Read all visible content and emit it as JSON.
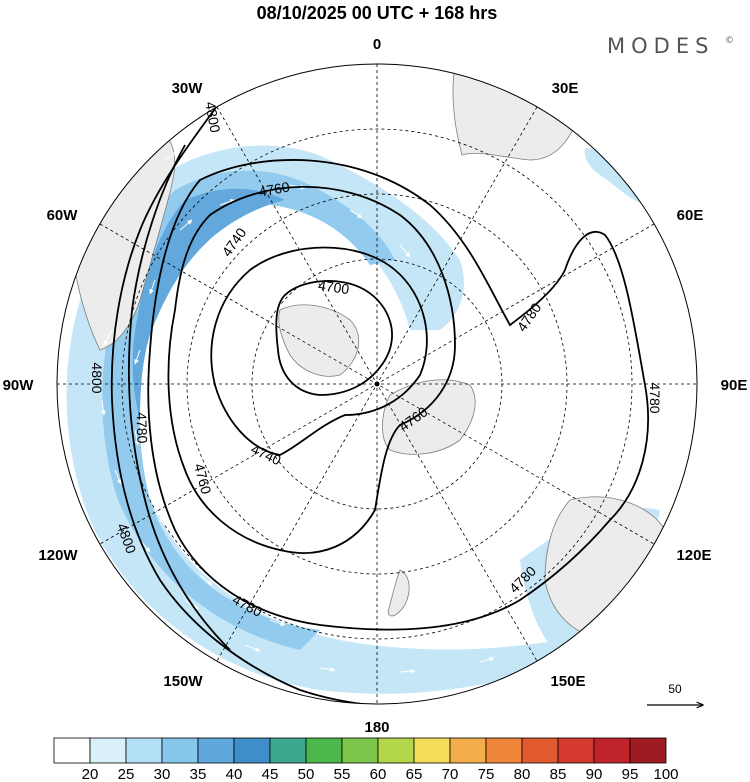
{
  "title": "08/10/2025  00 UTC  + 168 hrs",
  "brand": "MODES",
  "brand_mark": "©",
  "longitude_labels": {
    "top": "0",
    "top_right": "30E",
    "right_upper": "60E",
    "right": "90E",
    "right_lower": "120E",
    "bottom_right": "150E",
    "bottom": "180",
    "bottom_left": "150W",
    "left_lower": "120W",
    "left": "90W",
    "left_upper": "60W",
    "top_left": "30W"
  },
  "contour_labels": {
    "c4700": "4700",
    "c4740a": "4740",
    "c4740b": "4740",
    "c4760a": "4760",
    "c4760b": "4760",
    "c4760c": "4760",
    "c4780a": "4780",
    "c4780b": "4780",
    "c4780c": "4780",
    "c4780d": "4780",
    "c4780e": "4780",
    "c4800a": "4800",
    "c4800b": "4800",
    "c4800c": "4800"
  },
  "reference_vector": {
    "label": "50"
  },
  "colorbar": {
    "labels": [
      "20",
      "25",
      "30",
      "35",
      "40",
      "45",
      "50",
      "55",
      "60",
      "65",
      "70",
      "75",
      "80",
      "85",
      "90",
      "95",
      "100"
    ],
    "colors": [
      "#ffffff",
      "#d9f0fb",
      "#b3e0f5",
      "#87c7ec",
      "#5ea8db",
      "#3f8dc9",
      "#3ea88f",
      "#4cb84c",
      "#7cc64c",
      "#b4d64a",
      "#f5dc5a",
      "#f3ad4a",
      "#ee8539",
      "#e25a30",
      "#d43a2e",
      "#c0242b",
      "#9e1b22"
    ]
  },
  "colors": {
    "land": "#ececec",
    "coast": "#7d7d7d",
    "jet_light": "#c5e6f7",
    "jet_mid": "#93cbee",
    "jet_core": "#62a8dd",
    "contour": "#000000",
    "grid": "#000000"
  }
}
